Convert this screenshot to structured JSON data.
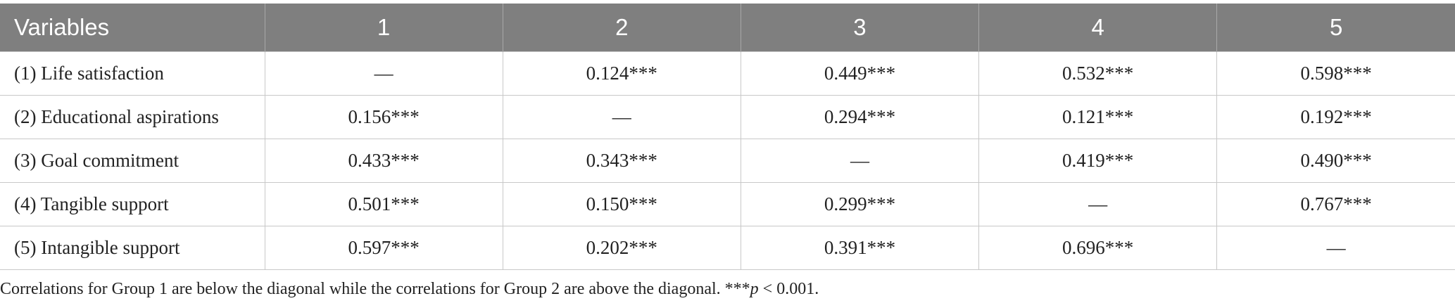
{
  "table": {
    "header": [
      "Variables",
      "1",
      "2",
      "3",
      "4",
      "5"
    ],
    "rows": [
      [
        "(1) Life satisfaction",
        "—",
        "0.124***",
        "0.449***",
        "0.532***",
        "0.598***"
      ],
      [
        "(2) Educational aspirations",
        "0.156***",
        "—",
        "0.294***",
        "0.121***",
        "0.192***"
      ],
      [
        "(3) Goal commitment",
        "0.433***",
        "0.343***",
        "—",
        "0.419***",
        "0.490***"
      ],
      [
        "(4) Tangible support",
        "0.501***",
        "0.150***",
        "0.299***",
        "—",
        "0.767***"
      ],
      [
        "(5) Intangible support",
        "0.597***",
        "0.202***",
        "0.391***",
        "0.696***",
        "—"
      ]
    ]
  },
  "footnote": [
    "Correlations for Group 1 are below the diagonal while the correlations for Group 2 are above the diagonal. ***",
    "p",
    " < 0.001."
  ]
}
